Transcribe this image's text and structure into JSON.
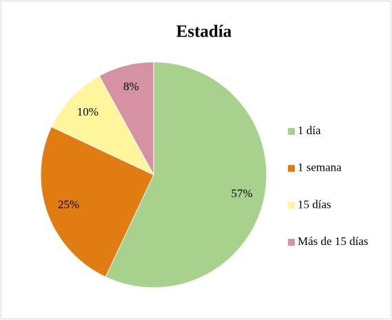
{
  "chart_data": {
    "type": "pie",
    "title": "Estadía",
    "categories": [
      "1 día",
      "1 semana",
      "15 días",
      "Más de 15 días"
    ],
    "values": [
      57,
      25,
      10,
      8
    ],
    "value_labels": [
      "57%",
      "25%",
      "10%",
      "8%"
    ],
    "colors": [
      "#a9d18e",
      "#e07c12",
      "#fff59d",
      "#d592a2"
    ],
    "legend": "right"
  }
}
